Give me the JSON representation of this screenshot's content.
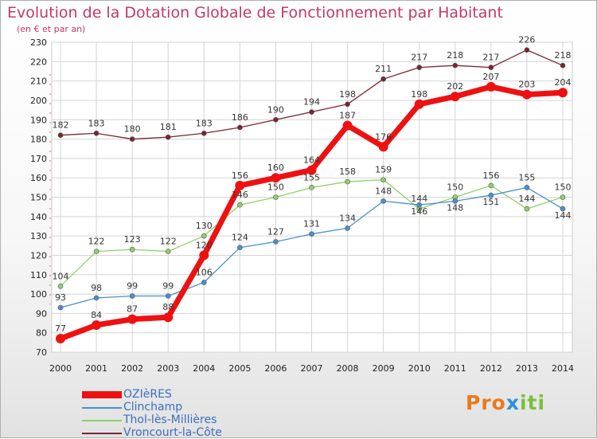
{
  "header": {
    "title": "Evolution de la Dotation Globale de Fonctionnement par Habitant",
    "subtitle": "(en € et par an)"
  },
  "logo": {
    "part1": "Pro",
    "part2": "x",
    "part3": "iti"
  },
  "chart_data": {
    "type": "line",
    "title": "Evolution de la Dotation Globale de Fonctionnement par Habitant",
    "subtitle": "(en € et par an)",
    "xlabel": "",
    "ylabel": "",
    "ylim": [
      70,
      230
    ],
    "yticks": [
      70,
      80,
      90,
      100,
      110,
      120,
      130,
      140,
      150,
      160,
      170,
      180,
      190,
      200,
      210,
      220,
      230
    ],
    "grid": true,
    "legend": "bottom-left",
    "x": [
      2000,
      2001,
      2002,
      2003,
      2004,
      2005,
      2006,
      2007,
      2008,
      2009,
      2010,
      2011,
      2012,
      2013,
      2014
    ],
    "series": [
      {
        "name": "Vroncourt-la-Côte",
        "color": "#7a2430",
        "values": [
          182,
          183,
          180,
          181,
          183,
          186,
          190,
          194,
          198,
          211,
          217,
          218,
          217,
          226,
          218
        ]
      },
      {
        "name": "Thol-lès-Millières",
        "color": "#8fd16a",
        "values": [
          104,
          122,
          123,
          122,
          130,
          146,
          150,
          155,
          158,
          159,
          144,
          150,
          156,
          144,
          150
        ]
      },
      {
        "name": "Clinchamp",
        "color": "#4a8fcf",
        "values": [
          93,
          98,
          99,
          99,
          106,
          124,
          127,
          131,
          134,
          148,
          146,
          148,
          151,
          155,
          144
        ]
      },
      {
        "name": "OZIèRES",
        "color": "#ee1111",
        "values": [
          77,
          84,
          87,
          88,
          120,
          156,
          160,
          164,
          187,
          176,
          198,
          202,
          207,
          203,
          204
        ]
      }
    ]
  }
}
